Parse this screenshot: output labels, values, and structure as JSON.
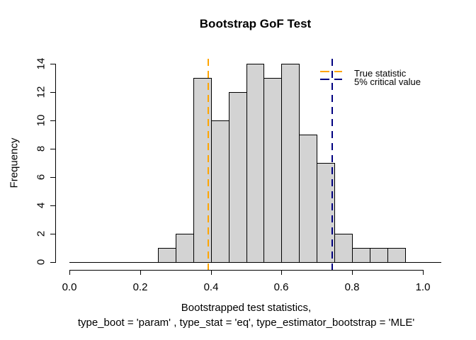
{
  "chart_data": {
    "type": "bar",
    "subtype": "histogram",
    "title": "Bootstrap GoF Test",
    "xlabel_line1": "Bootstrapped test statistics,",
    "xlabel_line2": "type_boot = 'param' , type_stat = 'eq', type_estimator_bootstrap = 'MLE'",
    "ylabel": "Frequency",
    "xlim": [
      0.0,
      1.05
    ],
    "ylim": [
      0,
      14
    ],
    "x_ticks": [
      0.0,
      0.2,
      0.4,
      0.6,
      0.8,
      1.0
    ],
    "x_tick_labels": [
      "0.0",
      "0.2",
      "0.4",
      "0.6",
      "0.8",
      "1.0"
    ],
    "y_ticks": [
      0,
      2,
      4,
      6,
      8,
      10,
      12,
      14
    ],
    "y_tick_labels": [
      "0",
      "2",
      "4",
      "6",
      "8",
      "10",
      "12",
      "14"
    ],
    "bin_start": 0.25,
    "bin_width": 0.05,
    "counts": [
      1,
      2,
      13,
      10,
      12,
      14,
      13,
      14,
      9,
      7,
      2,
      1,
      1,
      1
    ],
    "bar_fill": "#D3D3D3",
    "bar_border": "#000000",
    "grid": false,
    "vlines": [
      {
        "name": "True statistic",
        "value": 0.392,
        "color": "#FFA500",
        "style": "dashed",
        "width": 2
      },
      {
        "name": "5% critical value",
        "value": 0.744,
        "color": "#000080",
        "style": "dashed",
        "width": 2
      }
    ],
    "legend": {
      "position": "top-right",
      "boxed": false,
      "entries": [
        {
          "label": "True statistic",
          "color": "#FFA500",
          "line_style": "dashed"
        },
        {
          "label": "5% critical value",
          "color": "#000080",
          "line_style": "dashed"
        }
      ]
    }
  }
}
